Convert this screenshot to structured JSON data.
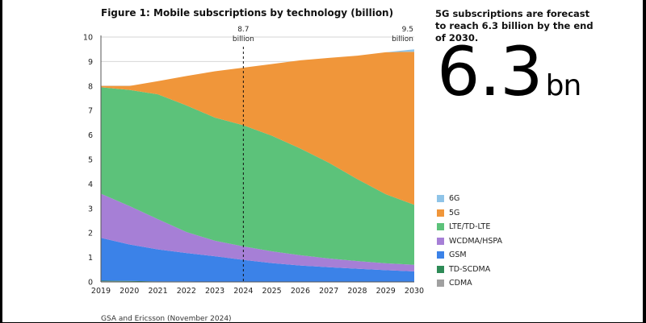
{
  "figure_title": "Figure 1: Mobile subscriptions by technology (billion)",
  "callout_text": "5G subscriptions are forecast to reach 6.3 billion by the end of 2030.",
  "big_number": "6.3",
  "big_unit": "bn",
  "source_text": "GSA and Ericsson (November 2024)",
  "chart_data": {
    "type": "area",
    "stacked": true,
    "x": [
      "2019",
      "2020",
      "2021",
      "2022",
      "2023",
      "2024",
      "2025",
      "2026",
      "2027",
      "2028",
      "2029",
      "2030"
    ],
    "ylim": [
      0,
      10
    ],
    "yticks": [
      "0",
      "1",
      "2",
      "3",
      "4",
      "5",
      "6",
      "7",
      "8",
      "9",
      "10"
    ],
    "grid": true,
    "legend": "right",
    "series": [
      {
        "name": "CDMA",
        "color": "#a0a0a0",
        "values": [
          0.03,
          0.02,
          0.01,
          0.01,
          0.0,
          0.0,
          0.0,
          0.0,
          0.0,
          0.0,
          0.0,
          0.0
        ]
      },
      {
        "name": "TD-SCDMA",
        "color": "#2e8b57",
        "values": [
          0.02,
          0.02,
          0.01,
          0.01,
          0.01,
          0.0,
          0.0,
          0.0,
          0.0,
          0.0,
          0.0,
          0.0
        ]
      },
      {
        "name": "GSM",
        "color": "#3b82e8",
        "values": [
          1.75,
          1.49,
          1.31,
          1.16,
          1.04,
          0.9,
          0.77,
          0.67,
          0.6,
          0.54,
          0.48,
          0.43
        ]
      },
      {
        "name": "WCDMA/HSPA",
        "color": "#a67fd6",
        "values": [
          1.8,
          1.57,
          1.23,
          0.86,
          0.63,
          0.55,
          0.48,
          0.42,
          0.36,
          0.31,
          0.28,
          0.27
        ]
      },
      {
        "name": "LTE/TD-LTE",
        "color": "#5cc27a",
        "values": [
          4.35,
          4.74,
          5.1,
          5.17,
          5.03,
          4.95,
          4.72,
          4.36,
          3.91,
          3.35,
          2.82,
          2.45
        ]
      },
      {
        "name": "5G",
        "color": "#f0963a",
        "values": [
          0.05,
          0.16,
          0.54,
          1.2,
          1.89,
          2.35,
          2.93,
          3.6,
          4.28,
          5.04,
          5.8,
          6.25
        ]
      },
      {
        "name": "6G",
        "color": "#8fc4e8",
        "values": [
          0.0,
          0.0,
          0.0,
          0.0,
          0.0,
          0.0,
          0.0,
          0.0,
          0.0,
          0.0,
          0.0,
          0.1
        ]
      }
    ],
    "annotations": [
      {
        "x": "2024",
        "label_value": "8.7",
        "label_unit": "billion",
        "dashed_line": true
      },
      {
        "x": "2030",
        "label_value": "9.5",
        "label_unit": "billion",
        "dashed_line": false
      }
    ]
  }
}
